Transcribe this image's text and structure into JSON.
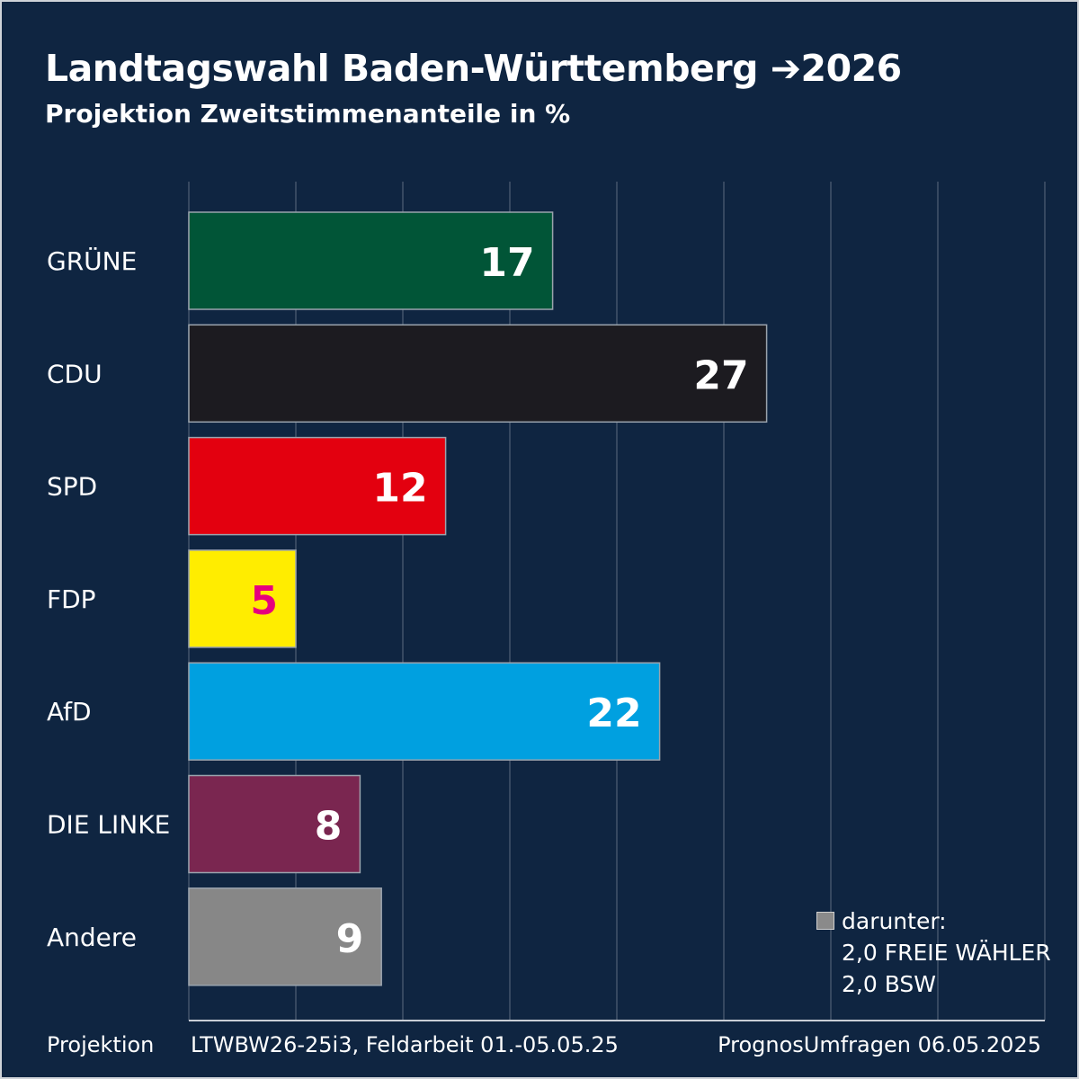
{
  "chart_data": {
    "type": "bar",
    "orientation": "horizontal",
    "title": "Landtagswahl Baden-Württemberg ➔2026",
    "subtitle": "Projektion Zweitstimmenanteile in %",
    "categories": [
      "GRÜNE",
      "CDU",
      "SPD",
      "FDP",
      "AfD",
      "DIE LINKE",
      "Andere"
    ],
    "values": [
      17,
      27,
      12,
      5,
      22,
      8,
      9
    ],
    "colors": [
      "#015537",
      "#1c1b20",
      "#e3000f",
      "#ffed00",
      "#00a0e0",
      "#7a2650",
      "#878787"
    ],
    "label_colors": [
      "#ffffff",
      "#ffffff",
      "#ffffff",
      "#e6007e",
      "#ffffff",
      "#ffffff",
      "#ffffff"
    ],
    "xlim": [
      0,
      40
    ],
    "grid": true
  },
  "note": {
    "heading": "darunter:",
    "lines": [
      "2,0 FREIE WÄHLER",
      "2,0 BSW"
    ]
  },
  "footer": {
    "left": "Projektion",
    "middle": "LTWBW26-25i3, Feldarbeit 01.-05.05.25",
    "right": "PrognosUmfragen 06.05.2025"
  }
}
